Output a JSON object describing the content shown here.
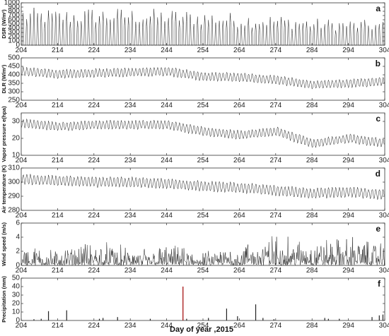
{
  "figure": {
    "xlabel": "Day of year ,2015",
    "xlim": [
      204,
      304
    ],
    "xticks": [
      204,
      214,
      224,
      234,
      244,
      254,
      264,
      274,
      284,
      294,
      304
    ]
  },
  "chart_data": [
    {
      "type": "line",
      "panel_letter": "a",
      "ylabel": "DSR (W/m²)",
      "ylim": [
        0,
        1000
      ],
      "yticks": [
        0,
        100,
        200,
        300,
        400,
        500,
        600,
        700,
        800,
        900,
        1000
      ],
      "grid": false,
      "series": [
        {
          "values_description": "",
          "x": [
            204,
            214,
            224,
            234,
            244,
            254,
            264,
            274,
            284,
            294,
            304
          ],
          "y_daily_peak": [
            900,
            850,
            900,
            880,
            860,
            820,
            760,
            720,
            640,
            610,
            580
          ],
          "y_min": 0
        }
      ]
    },
    {
      "type": "line",
      "panel_letter": "b",
      "ylabel": "DLR (W/m²)",
      "ylim": [
        250,
        500
      ],
      "yticks": [
        250,
        300,
        350,
        400,
        450,
        500
      ],
      "grid": false,
      "series": [
        {
          "x": [
            204,
            214,
            224,
            234,
            244,
            254,
            264,
            274,
            284,
            294,
            304
          ],
          "y_mean": [
            420,
            405,
            410,
            415,
            420,
            390,
            385,
            370,
            340,
            350,
            360
          ],
          "amplitude": 25
        }
      ]
    },
    {
      "type": "line",
      "panel_letter": "c",
      "ylabel": "Vapor pressure e(hpa)",
      "ylim": [
        10,
        35
      ],
      "yticks": [
        10,
        20,
        30
      ],
      "grid": false,
      "series": [
        {
          "x": [
            204,
            214,
            224,
            234,
            244,
            254,
            264,
            274,
            284,
            294,
            304
          ],
          "y_mean": [
            29,
            27,
            28,
            28,
            28,
            24,
            22,
            24,
            17,
            20,
            17
          ],
          "amplitude": 2.5
        }
      ]
    },
    {
      "type": "line",
      "panel_letter": "d",
      "ylabel": "Air temperature (K)",
      "ylim": [
        280,
        310
      ],
      "yticks": [
        280,
        290,
        300,
        310
      ],
      "grid": false,
      "series": [
        {
          "x": [
            204,
            214,
            224,
            234,
            244,
            254,
            264,
            274,
            284,
            294,
            304
          ],
          "y_mean": [
            302,
            301,
            300,
            300,
            299,
            297,
            296,
            294,
            292,
            293,
            291
          ],
          "amplitude": 3.5
        }
      ]
    },
    {
      "type": "line",
      "panel_letter": "e",
      "ylabel": "Wind speed (m/s)",
      "ylim": [
        0,
        6
      ],
      "yticks": [
        0,
        2,
        4,
        6
      ],
      "grid": false,
      "series": [
        {
          "x": [
            204,
            214,
            224,
            234,
            244,
            254,
            264,
            274,
            284,
            294,
            304
          ],
          "y_typical_peak": [
            1.8,
            1.4,
            2.2,
            1.5,
            1.8,
            1.2,
            1.9,
            2.8,
            2.2,
            2.6,
            2.0
          ]
        }
      ]
    },
    {
      "type": "bar",
      "panel_letter": "f",
      "ylabel": "Precipitation (mm)",
      "ylim": [
        0,
        50
      ],
      "yticks": [
        0,
        10,
        20,
        30,
        40,
        50
      ],
      "grid": false,
      "series": [
        {
          "x": [
            207,
            209,
            211,
            216,
            225,
            226,
            230,
            239,
            248,
            249,
            255,
            260,
            263,
            268,
            270,
            273,
            287,
            288,
            291,
            300,
            302,
            303
          ],
          "values": [
            1.5,
            2,
            11,
            12,
            2,
            3,
            4,
            2,
            40,
            2,
            3,
            14,
            5,
            19,
            3,
            1.5,
            3,
            2,
            2,
            4,
            6,
            7
          ]
        }
      ]
    }
  ]
}
